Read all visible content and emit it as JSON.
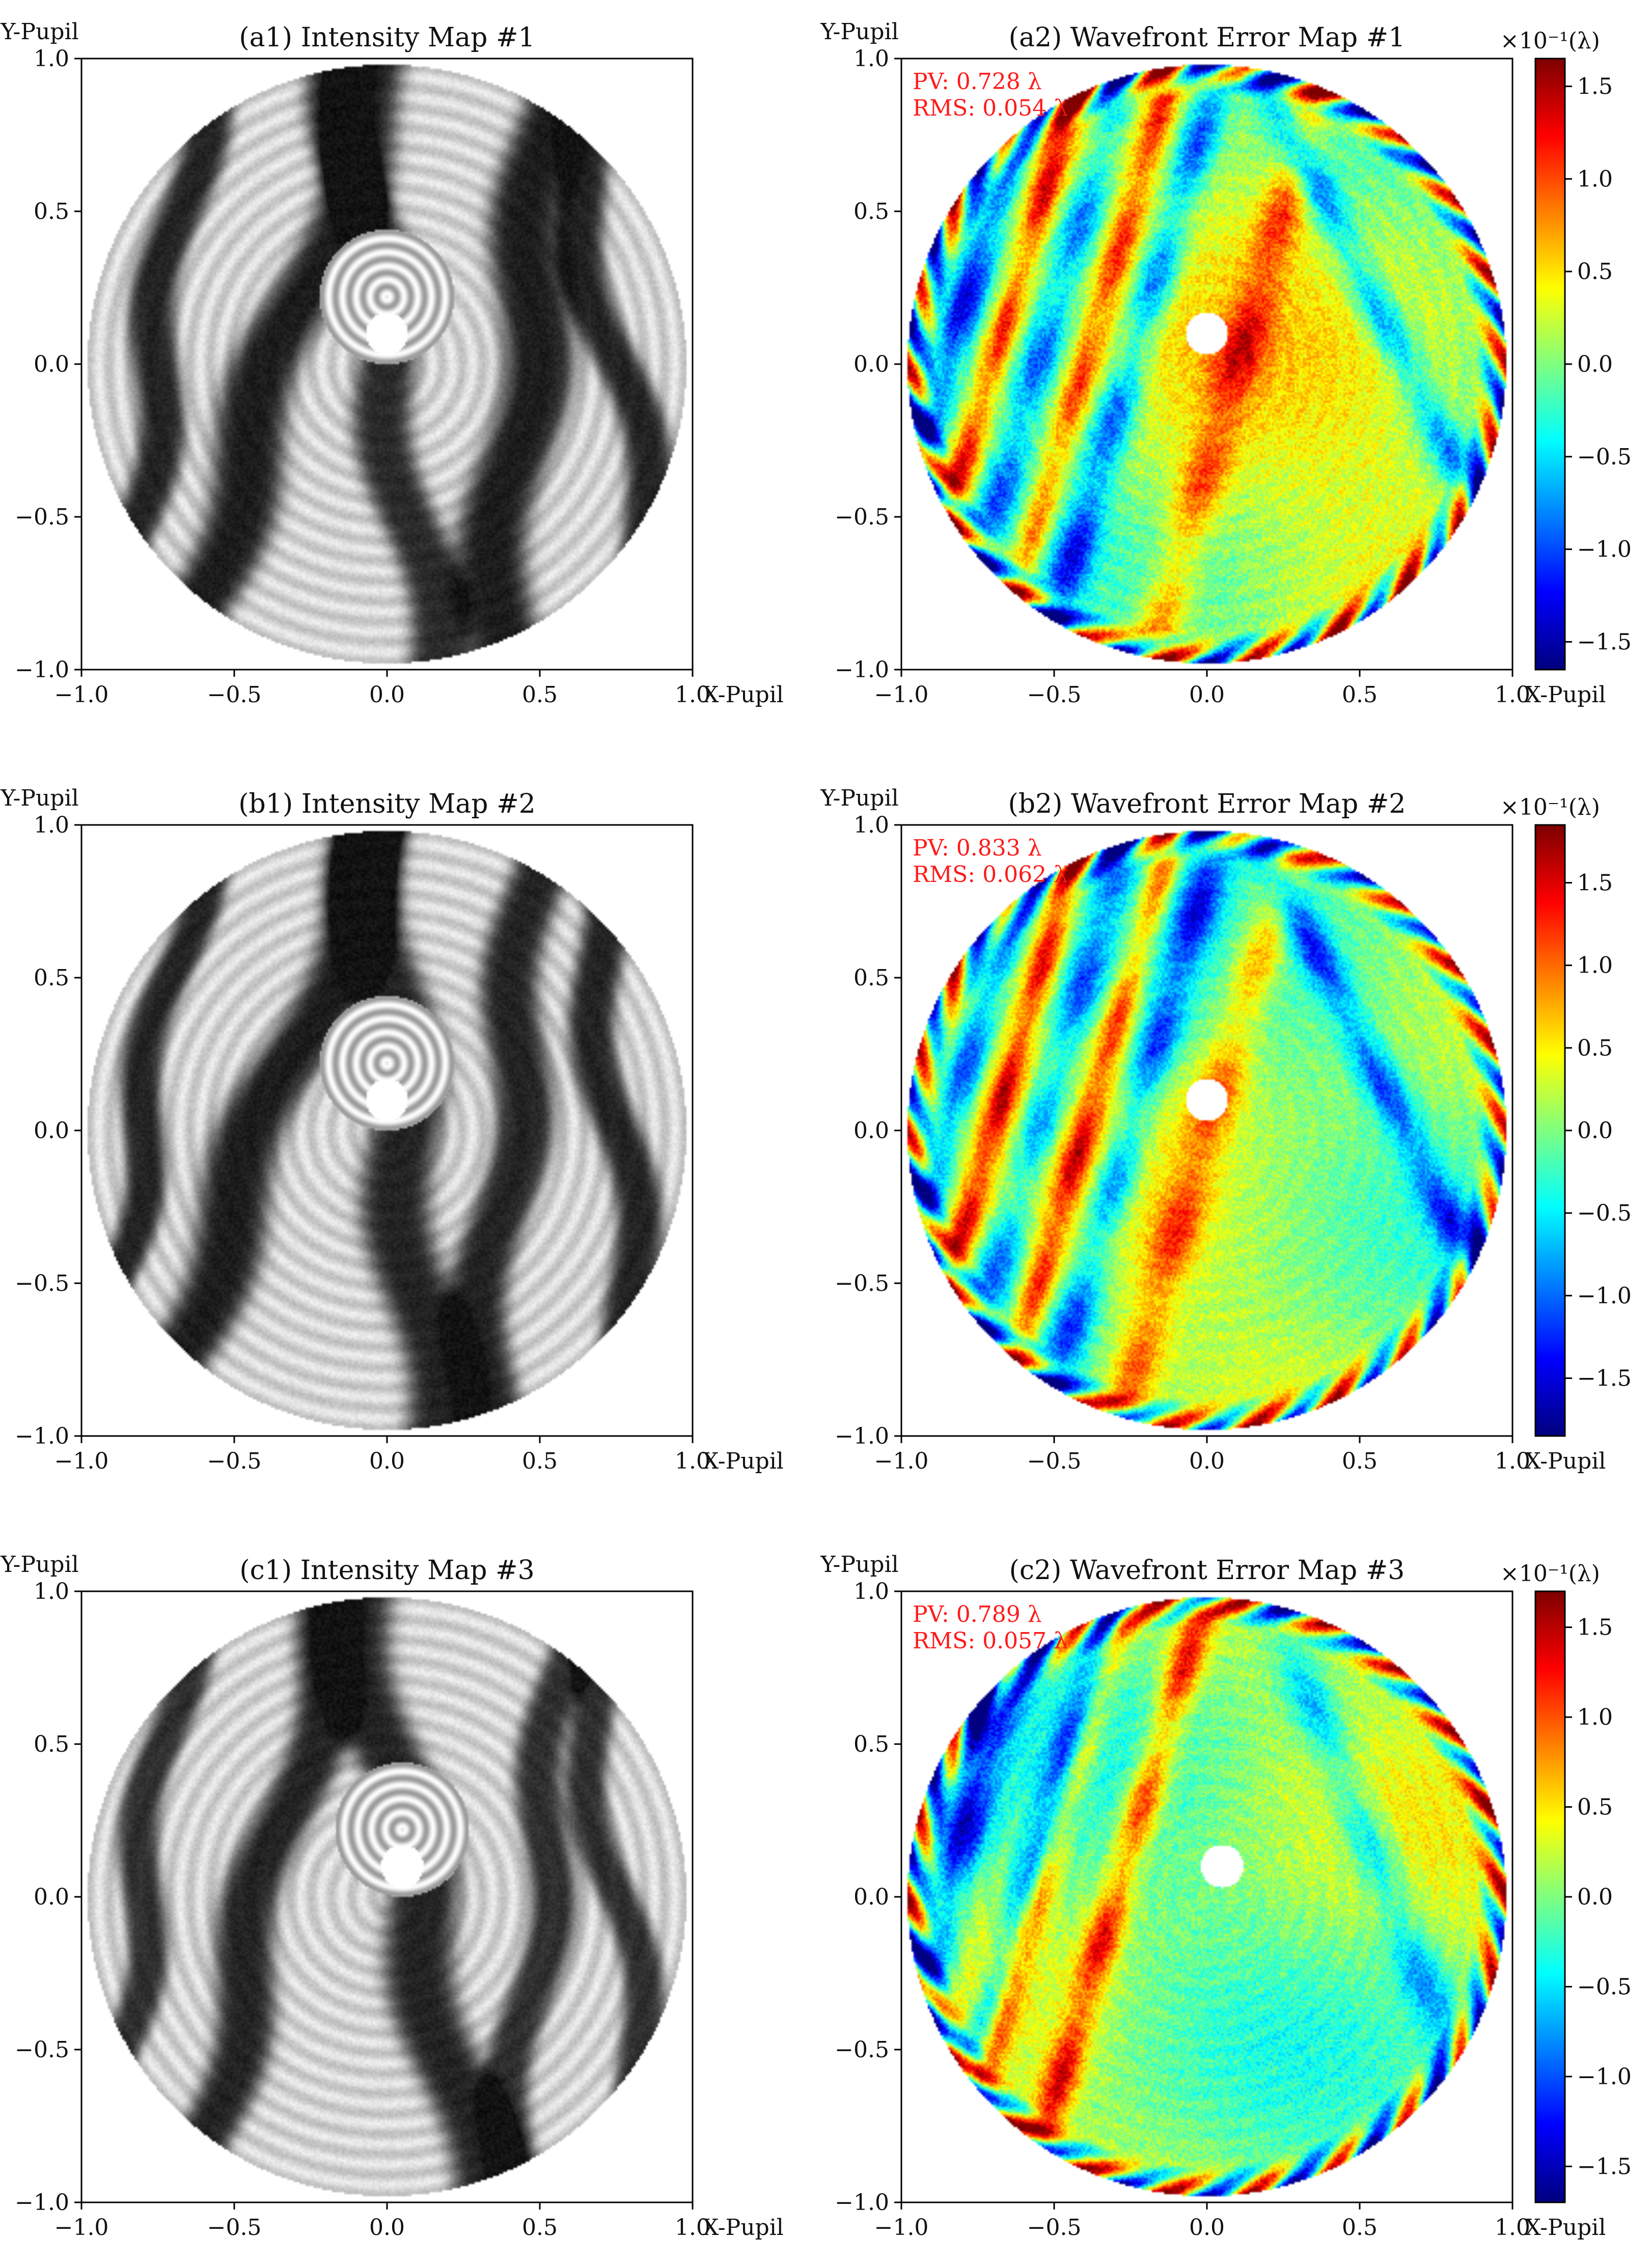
{
  "chart_data": [
    {
      "type": "heatmap",
      "panel": "a1",
      "title": "(a1) Intensity Map #1",
      "xlabel": "X-Pupil",
      "ylabel": "Y-Pupil",
      "xlim": [
        -1.0,
        1.0
      ],
      "ylim": [
        -1.0,
        1.0
      ],
      "xticks": [
        "−1.0",
        "−0.5",
        "0.0",
        "0.5",
        "1.0"
      ],
      "yticks": [
        "1.0",
        "0.5",
        "0.0",
        "−0.5",
        "−1.0"
      ],
      "colormap": "gray",
      "aperture_radius": 0.98,
      "obscuration_center": [
        0.0,
        0.1
      ],
      "obscuration_radius": 0.07,
      "pattern": {
        "bands": [
          {
            "x0": -0.75,
            "slope": 0.15,
            "width": 0.08,
            "level": 0.15
          },
          {
            "x0": -0.35,
            "slope": 0.35,
            "width": 0.12,
            "level": 0.12
          },
          {
            "x0": 0.0,
            "slope": -0.15,
            "width": 0.1,
            "level": 0.18
          },
          {
            "x0": 0.45,
            "slope": 0.1,
            "width": 0.12,
            "level": 0.12
          },
          {
            "x0": 0.75,
            "slope": -0.2,
            "width": 0.08,
            "level": 0.15
          }
        ]
      }
    },
    {
      "type": "heatmap",
      "panel": "a2",
      "title": "(a2) Wavefront Error Map #1",
      "xlabel": "X-Pupil",
      "ylabel": "Y-Pupil",
      "xlim": [
        -1.0,
        1.0
      ],
      "ylim": [
        -1.0,
        1.0
      ],
      "xticks": [
        "−1.0",
        "−0.5",
        "0.0",
        "0.5",
        "1.0"
      ],
      "yticks": [
        "1.0",
        "0.5",
        "0.0",
        "−0.5",
        "−1.0"
      ],
      "colormap": "jet",
      "pv_label": "PV: 0.728 λ",
      "rms_label": "RMS: 0.054 λ",
      "colorbar": {
        "unit_label": "×10⁻¹(λ)",
        "range": [
          -1.65,
          1.65
        ],
        "ticks": [
          1.5,
          1.0,
          0.5,
          0.0,
          -0.5,
          -1.0,
          -1.5
        ],
        "tick_labels": [
          "1.5",
          "1.0",
          "0.5",
          "0.0",
          "−0.5",
          "−1.0",
          "−1.5"
        ]
      },
      "aperture_radius": 0.98,
      "obscuration_center": [
        0.0,
        0.1
      ],
      "obscuration_radius": 0.07,
      "pattern": {
        "bands": [
          {
            "x0": -0.85,
            "slope": 0.3,
            "width": 0.06,
            "value": -1.3
          },
          {
            "x0": -0.55,
            "slope": 0.3,
            "width": 0.07,
            "value": -1.1
          },
          {
            "x0": -0.25,
            "slope": 0.3,
            "width": 0.07,
            "value": -1.2
          },
          {
            "x0": -0.7,
            "slope": 0.3,
            "width": 0.05,
            "value": 1.2
          },
          {
            "x0": -0.4,
            "slope": 0.3,
            "width": 0.05,
            "value": 0.9
          },
          {
            "x0": 0.1,
            "slope": 0.3,
            "width": 0.08,
            "value": 0.9
          },
          {
            "x0": 0.65,
            "slope": -0.5,
            "width": 0.07,
            "value": -1.0
          }
        ],
        "base": 0.2
      }
    },
    {
      "type": "heatmap",
      "panel": "b1",
      "title": "(b1) Intensity Map #2",
      "xlabel": "X-Pupil",
      "ylabel": "Y-Pupil",
      "xlim": [
        -1.0,
        1.0
      ],
      "ylim": [
        -1.0,
        1.0
      ],
      "xticks": [
        "−1.0",
        "−0.5",
        "0.0",
        "0.5",
        "1.0"
      ],
      "yticks": [
        "1.0",
        "0.5",
        "0.0",
        "−0.5",
        "−1.0"
      ],
      "colormap": "gray",
      "aperture_radius": 0.98,
      "obscuration_center": [
        0.0,
        0.1
      ],
      "obscuration_radius": 0.07,
      "pattern": {
        "bands": [
          {
            "x0": -0.8,
            "slope": 0.2,
            "width": 0.07,
            "level": 0.15
          },
          {
            "x0": -0.4,
            "slope": 0.4,
            "width": 0.12,
            "level": 0.12
          },
          {
            "x0": 0.05,
            "slope": -0.1,
            "width": 0.12,
            "level": 0.15
          },
          {
            "x0": 0.4,
            "slope": 0.1,
            "width": 0.1,
            "level": 0.15
          },
          {
            "x0": 0.75,
            "slope": -0.1,
            "width": 0.08,
            "level": 0.15
          }
        ]
      }
    },
    {
      "type": "heatmap",
      "panel": "b2",
      "title": "(b2) Wavefront Error Map #2",
      "xlabel": "X-Pupil",
      "ylabel": "Y-Pupil",
      "xlim": [
        -1.0,
        1.0
      ],
      "ylim": [
        -1.0,
        1.0
      ],
      "xticks": [
        "−1.0",
        "−0.5",
        "0.0",
        "0.5",
        "1.0"
      ],
      "yticks": [
        "1.0",
        "0.5",
        "0.0",
        "−0.5",
        "−1.0"
      ],
      "colormap": "jet",
      "pv_label": "PV: 0.833 λ",
      "rms_label": "RMS: 0.062 λ",
      "colorbar": {
        "unit_label": "×10⁻¹(λ)",
        "range": [
          -1.85,
          1.85
        ],
        "ticks": [
          1.5,
          1.0,
          0.5,
          0.0,
          -0.5,
          -1.0,
          -1.5
        ],
        "tick_labels": [
          "1.5",
          "1.0",
          "0.5",
          "0.0",
          "−0.5",
          "−1.0",
          "−1.5"
        ]
      },
      "aperture_radius": 0.98,
      "obscuration_center": [
        0.0,
        0.1
      ],
      "obscuration_radius": 0.07,
      "pattern": {
        "bands": [
          {
            "x0": -0.85,
            "slope": 0.3,
            "width": 0.06,
            "value": -1.4
          },
          {
            "x0": -0.55,
            "slope": 0.3,
            "width": 0.07,
            "value": -1.2
          },
          {
            "x0": -0.25,
            "slope": 0.3,
            "width": 0.07,
            "value": -1.3
          },
          {
            "x0": -0.7,
            "slope": 0.3,
            "width": 0.05,
            "value": 1.4
          },
          {
            "x0": -0.4,
            "slope": 0.3,
            "width": 0.05,
            "value": 1.2
          },
          {
            "x0": 0.0,
            "slope": 0.3,
            "width": 0.08,
            "value": 1.0
          },
          {
            "x0": 0.65,
            "slope": -0.5,
            "width": 0.07,
            "value": -1.2
          }
        ],
        "base": 0.1
      }
    },
    {
      "type": "heatmap",
      "panel": "c1",
      "title": "(c1) Intensity Map #3",
      "xlabel": "X-Pupil",
      "ylabel": "Y-Pupil",
      "xlim": [
        -1.0,
        1.0
      ],
      "ylim": [
        -1.0,
        1.0
      ],
      "xticks": [
        "−1.0",
        "−0.5",
        "0.0",
        "0.5",
        "1.0"
      ],
      "yticks": [
        "1.0",
        "0.5",
        "0.0",
        "−0.5",
        "−1.0"
      ],
      "colormap": "gray",
      "aperture_radius": 0.98,
      "obscuration_center": [
        0.05,
        0.1
      ],
      "obscuration_radius": 0.07,
      "pattern": {
        "bands": [
          {
            "x0": -0.8,
            "slope": 0.15,
            "width": 0.07,
            "level": 0.2
          },
          {
            "x0": -0.4,
            "slope": 0.25,
            "width": 0.1,
            "level": 0.15
          },
          {
            "x0": 0.1,
            "slope": -0.2,
            "width": 0.12,
            "level": 0.15
          },
          {
            "x0": 0.5,
            "slope": 0.1,
            "width": 0.08,
            "level": 0.2
          },
          {
            "x0": 0.75,
            "slope": -0.15,
            "width": 0.07,
            "level": 0.2
          }
        ]
      }
    },
    {
      "type": "heatmap",
      "panel": "c2",
      "title": "(c2) Wavefront Error Map #3",
      "xlabel": "X-Pupil",
      "ylabel": "Y-Pupil",
      "xlim": [
        -1.0,
        1.0
      ],
      "ylim": [
        -1.0,
        1.0
      ],
      "xticks": [
        "−1.0",
        "−0.5",
        "0.0",
        "0.5",
        "1.0"
      ],
      "yticks": [
        "1.0",
        "0.5",
        "0.0",
        "−0.5",
        "−1.0"
      ],
      "colormap": "jet",
      "pv_label": "PV: 0.789 λ",
      "rms_label": "RMS: 0.057 λ",
      "colorbar": {
        "unit_label": "×10⁻¹(λ)",
        "range": [
          -1.7,
          1.7
        ],
        "ticks": [
          1.5,
          1.0,
          0.5,
          0.0,
          -0.5,
          -1.0,
          -1.5
        ],
        "tick_labels": [
          "1.5",
          "1.0",
          "0.5",
          "0.0",
          "−0.5",
          "−1.0",
          "−1.5"
        ]
      },
      "aperture_radius": 0.98,
      "obscuration_center": [
        0.05,
        0.1
      ],
      "obscuration_radius": 0.07,
      "pattern": {
        "bands": [
          {
            "x0": -0.85,
            "slope": 0.25,
            "width": 0.08,
            "value": -1.5
          },
          {
            "x0": -0.6,
            "slope": 0.3,
            "width": 0.06,
            "value": -1.0
          },
          {
            "x0": -0.3,
            "slope": 0.3,
            "width": 0.06,
            "value": 1.3
          },
          {
            "x0": -0.55,
            "slope": 0.3,
            "width": 0.05,
            "value": 1.0
          },
          {
            "x0": 0.6,
            "slope": -0.4,
            "width": 0.08,
            "value": -0.8
          }
        ],
        "base": 0.05
      }
    }
  ]
}
